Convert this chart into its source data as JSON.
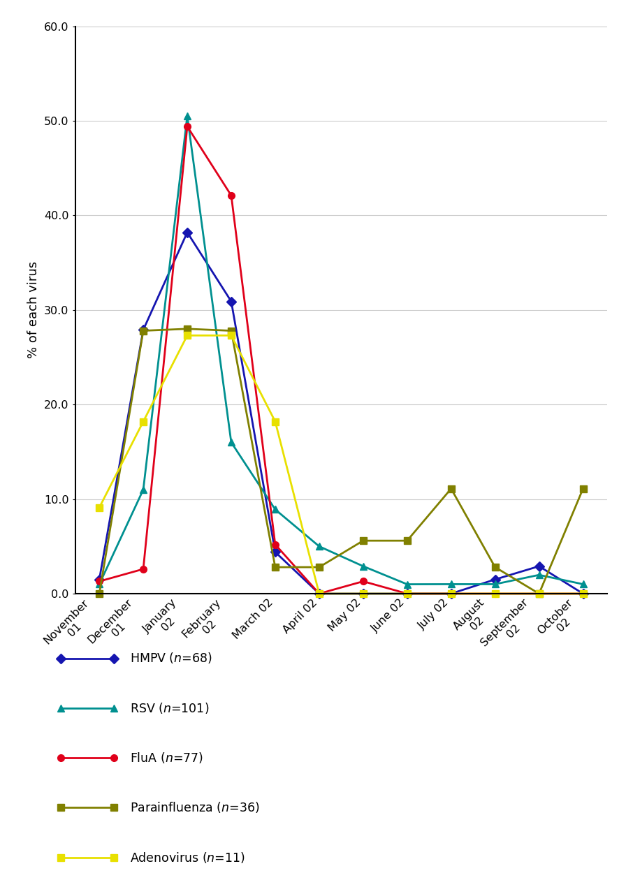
{
  "x_labels": [
    "November\n01",
    "December\n01",
    "January\n02",
    "February\n02",
    "March 02",
    "April 02",
    "May 02",
    "June 02",
    "July 02",
    "August\n02",
    "September\n02",
    "October\n02"
  ],
  "HMPV": [
    1.5,
    27.9,
    38.2,
    30.9,
    4.4,
    0.0,
    0.0,
    0.0,
    0.0,
    1.5,
    2.9,
    0.0
  ],
  "RSV": [
    1.0,
    11.0,
    50.5,
    16.0,
    8.9,
    5.0,
    2.9,
    0.99,
    1.0,
    1.0,
    1.98,
    1.0
  ],
  "FluA": [
    1.3,
    2.6,
    49.4,
    42.1,
    5.2,
    0.0,
    1.3,
    0.0,
    0.0,
    0.0,
    0.0,
    0.0
  ],
  "Parainfluenza": [
    0.0,
    27.8,
    28.0,
    27.8,
    2.8,
    2.8,
    5.6,
    5.6,
    11.1,
    2.8,
    0.0,
    11.1
  ],
  "Adenovirus": [
    9.1,
    18.2,
    27.3,
    27.3,
    18.2,
    0.0,
    0.0,
    0.0,
    0.0,
    0.0,
    0.0,
    0.0
  ],
  "colors": {
    "HMPV": "#1515b0",
    "RSV": "#009090",
    "FluA": "#e0001a",
    "Parainfluenza": "#808000",
    "Adenovirus": "#e8e000"
  },
  "markers": {
    "HMPV": "D",
    "RSV": "^",
    "FluA": "o",
    "Parainfluenza": "s",
    "Adenovirus": "s"
  },
  "ylabel": "% of each virus",
  "ylim": [
    0,
    60
  ],
  "yticks": [
    0.0,
    10.0,
    20.0,
    30.0,
    40.0,
    50.0,
    60.0
  ],
  "grid_color": "#cccccc",
  "linewidth": 2.0,
  "markersize": 7
}
